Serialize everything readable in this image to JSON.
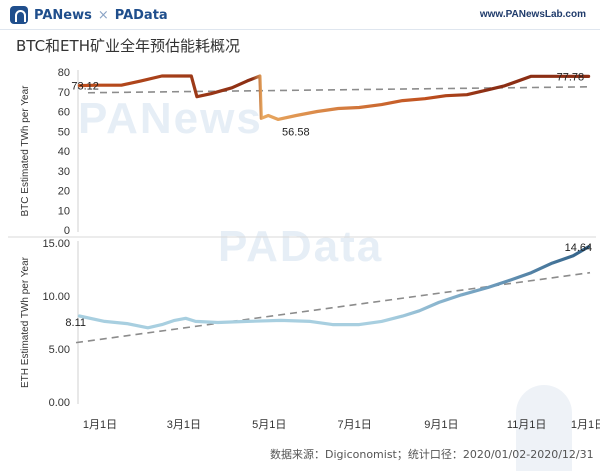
{
  "header": {
    "brand_left": "PANews",
    "brand_x": "×",
    "brand_right": "PAData",
    "site": "www.PANewsLab.com"
  },
  "title": "BTC和ETH矿业全年预估能耗概况",
  "watermarks": {
    "top": "PANews",
    "bottom": "PAData"
  },
  "source": "数据来源：Digiconomist；统计口径：2020/01/02-2020/12/31",
  "colors": {
    "btc_dark": "#8b2e14",
    "btc_mid": "#c0501e",
    "btc_light": "#e8a860",
    "eth_light": "#a8cfe0",
    "eth_dark": "#2f5f86",
    "trend": "#8c8c8c"
  },
  "chart_data": [
    {
      "type": "line",
      "name": "btc",
      "ylabel": "BTC Estimated TWh per Year",
      "ylim": [
        0,
        80
      ],
      "yticks": [
        "0",
        "10",
        "20",
        "30",
        "40",
        "50",
        "60",
        "70",
        "80"
      ],
      "x": [
        "2020-01-02",
        "2020-01-15",
        "2020-02-01",
        "2020-02-15",
        "2020-03-01",
        "2020-03-15",
        "2020-03-22",
        "2020-03-26",
        "2020-04-05",
        "2020-04-20",
        "2020-05-01",
        "2020-05-10",
        "2020-05-11",
        "2020-05-16",
        "2020-05-23",
        "2020-06-05",
        "2020-06-20",
        "2020-07-05",
        "2020-07-20",
        "2020-08-05",
        "2020-08-20",
        "2020-09-05",
        "2020-09-20",
        "2020-10-05",
        "2020-10-20",
        "2020-11-01",
        "2020-11-20",
        "2020-12-10",
        "2020-12-31"
      ],
      "values": [
        73.12,
        73.3,
        73.3,
        75.5,
        78,
        78,
        78,
        67.5,
        69,
        72,
        75.5,
        78,
        56.58,
        58,
        56,
        58,
        60,
        61.5,
        62,
        63.5,
        65.5,
        66.5,
        68,
        68.5,
        71,
        73,
        77.8,
        77.8,
        77.78
      ],
      "labels": {
        "start": "73.12",
        "min": "56.58",
        "end": "77.78"
      },
      "trendline": [
        69.5,
        72.5
      ]
    },
    {
      "type": "line",
      "name": "eth",
      "ylabel": "ETH Estimated TWh per Year",
      "ylim": [
        0,
        15
      ],
      "yticks": [
        "0.00",
        "5.00",
        "10.00",
        "15.00"
      ],
      "x": [
        "2020-01-02",
        "2020-01-20",
        "2020-02-05",
        "2020-02-20",
        "2020-03-01",
        "2020-03-10",
        "2020-03-18",
        "2020-03-25",
        "2020-04-10",
        "2020-05-01",
        "2020-05-25",
        "2020-06-15",
        "2020-07-01",
        "2020-07-20",
        "2020-08-05",
        "2020-08-20",
        "2020-09-01",
        "2020-09-15",
        "2020-10-01",
        "2020-10-20",
        "2020-11-05",
        "2020-11-20",
        "2020-12-05",
        "2020-12-20",
        "2020-12-31"
      ],
      "values": [
        8.11,
        7.6,
        7.4,
        7.0,
        7.3,
        7.7,
        7.9,
        7.6,
        7.5,
        7.6,
        7.7,
        7.6,
        7.3,
        7.3,
        7.6,
        8.1,
        8.6,
        9.4,
        10.1,
        10.8,
        11.5,
        12.2,
        13.1,
        13.8,
        14.64
      ],
      "labels": {
        "start": "8.11",
        "end": "14.64"
      },
      "trendline": [
        5.6,
        12.2
      ]
    }
  ],
  "x_axis": {
    "ticks": [
      "1月1日",
      "3月1日",
      "5月1日",
      "7月1日",
      "9月1日",
      "11月1日",
      "1月1日"
    ]
  }
}
